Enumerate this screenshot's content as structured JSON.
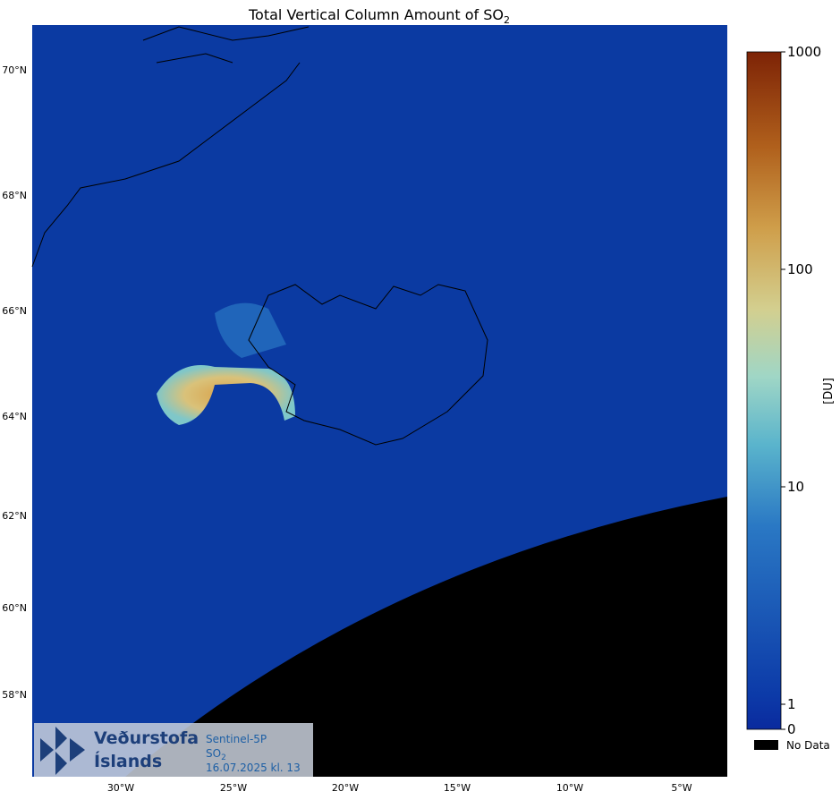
{
  "title": {
    "text": "Total Vertical Column Amount of SO",
    "subscript": "2"
  },
  "lat_labels": [
    "70°N",
    "68°N",
    "66°N",
    "64°N",
    "62°N",
    "60°N",
    "58°N"
  ],
  "lon_labels": [
    "30°W",
    "25°W",
    "20°W",
    "15°W",
    "10°W",
    "5°W"
  ],
  "colorbar": {
    "label": "[DU]",
    "ticks": [
      0,
      1,
      10,
      100,
      1000
    ],
    "scale": "log",
    "no_data": "No Data"
  },
  "logo": {
    "name_line1": "Veðurstofa",
    "name_line2": "Íslands",
    "product": "Sentinel-5P",
    "species": {
      "text": "SO",
      "subscript": "2"
    },
    "datetime": "16.07.2025 kl. 13"
  }
}
